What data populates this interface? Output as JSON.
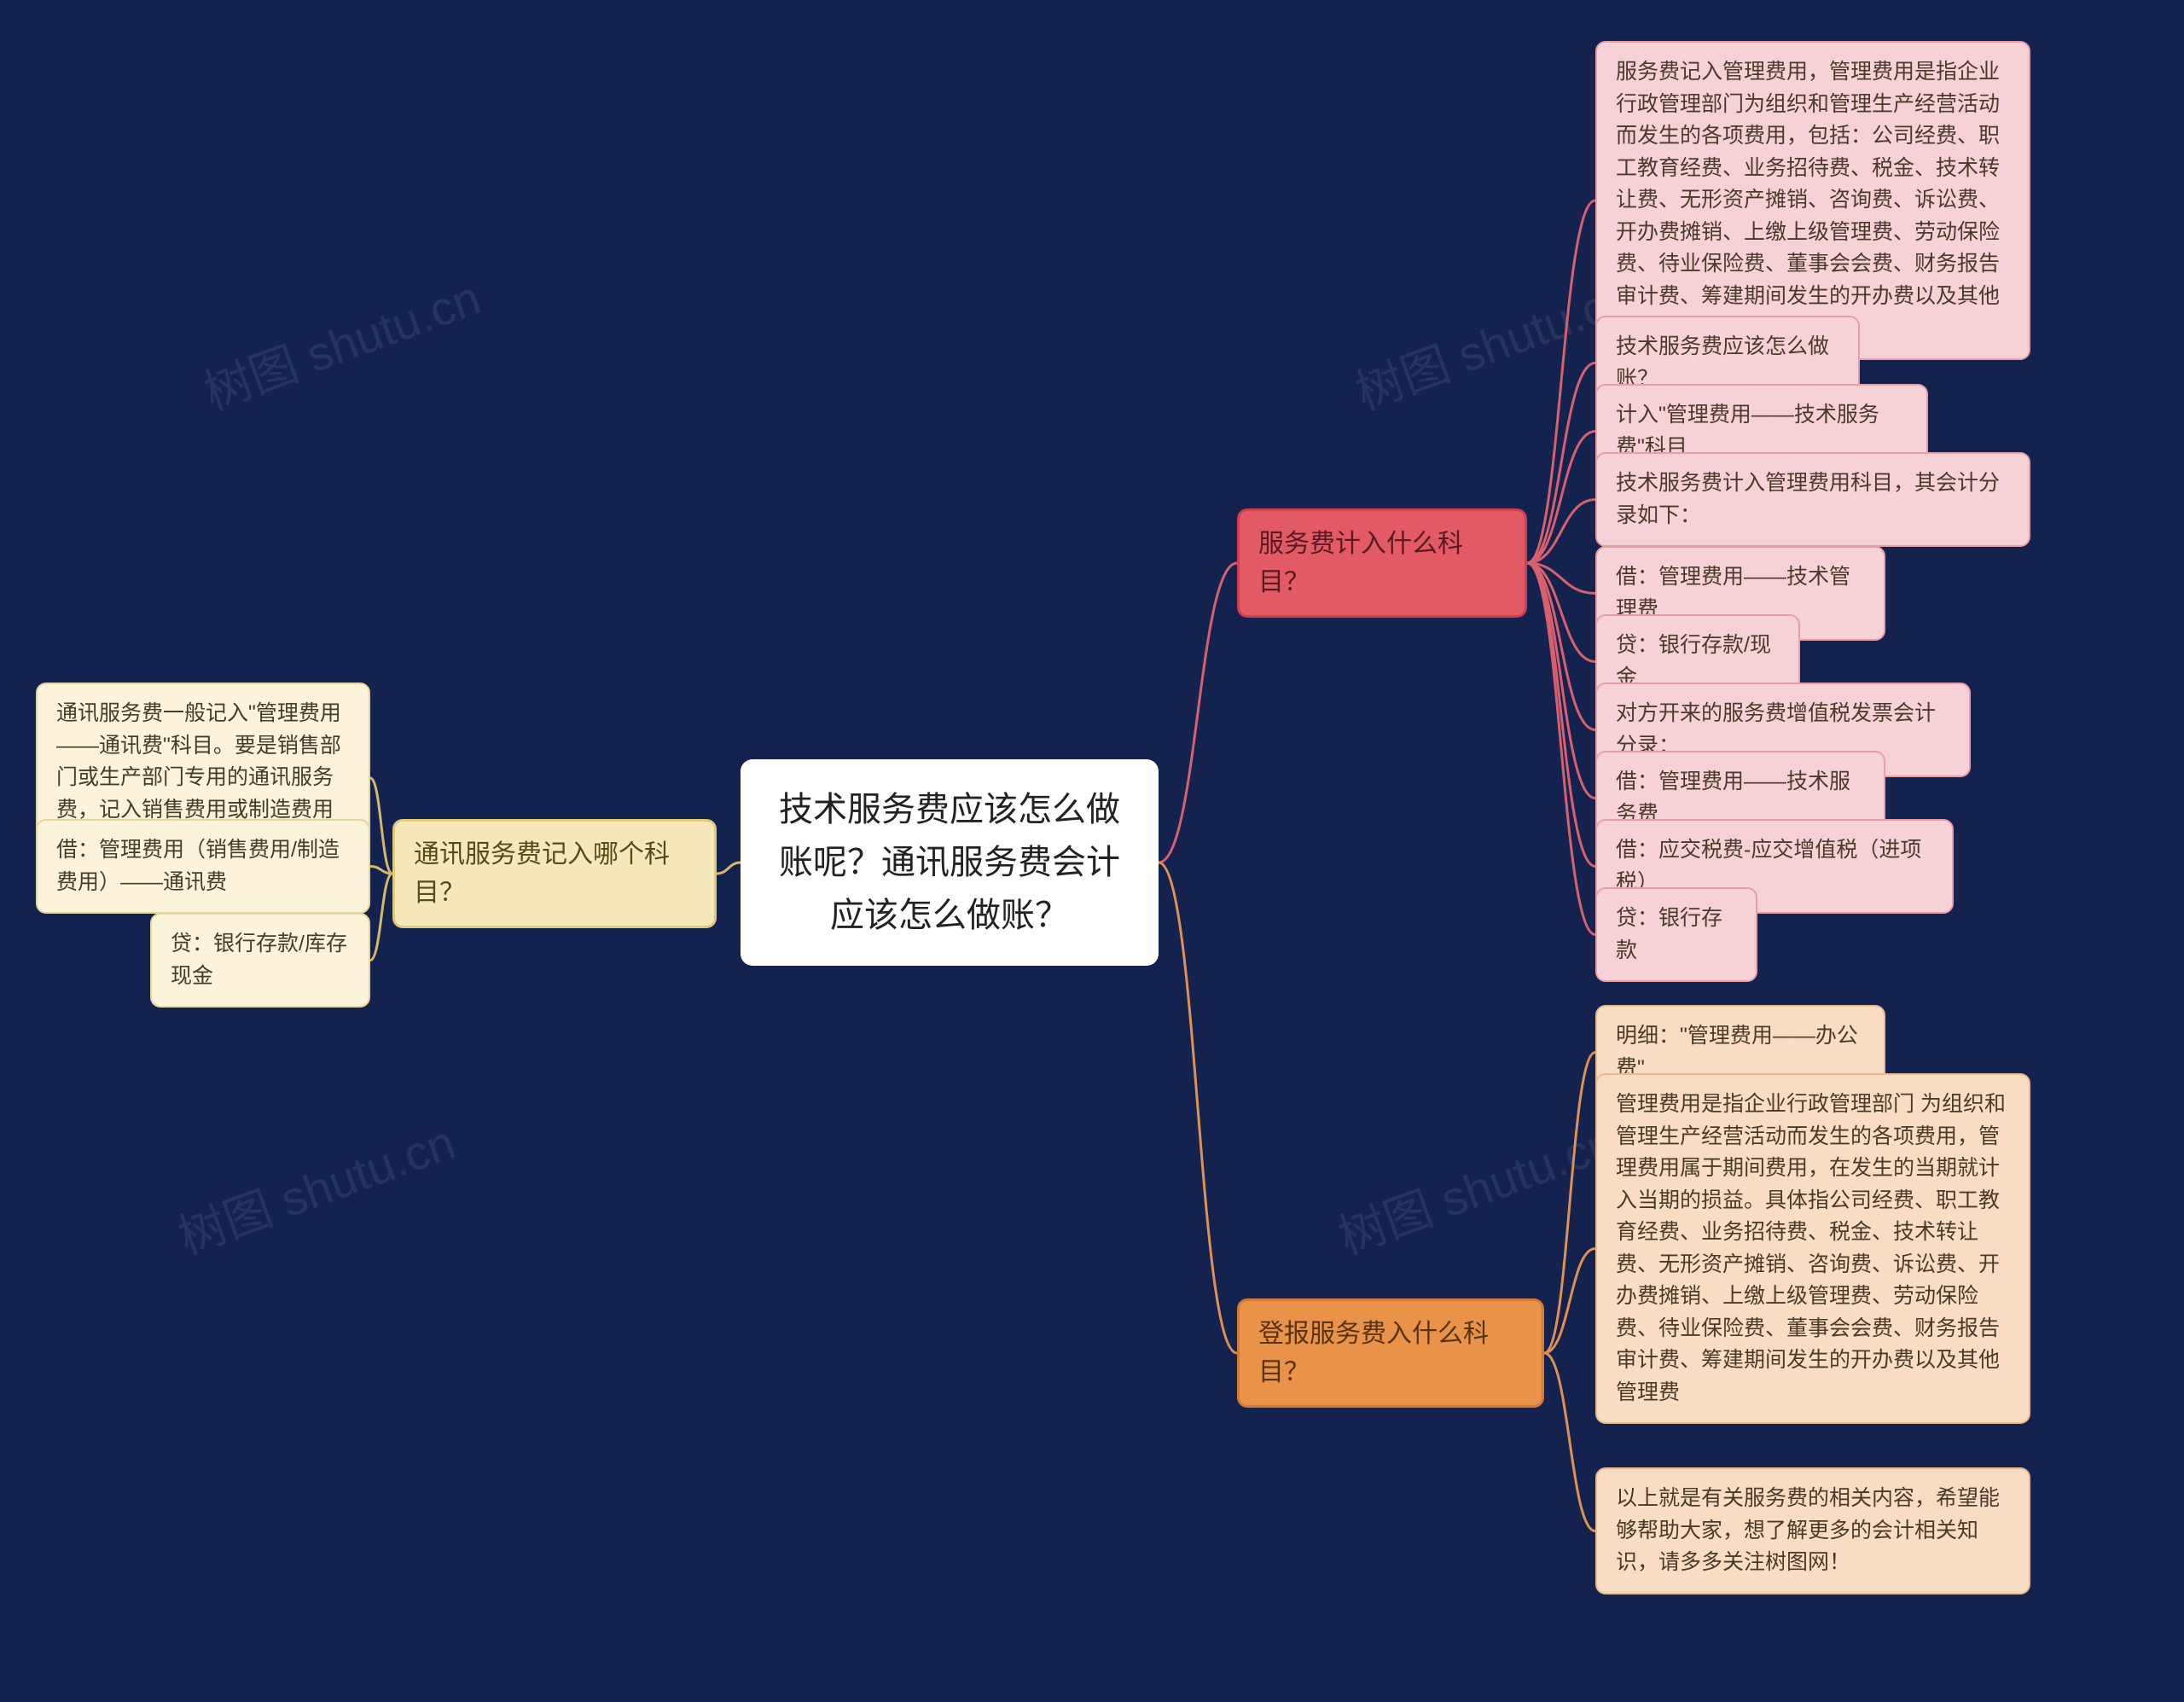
{
  "background_color": "#14224f",
  "watermark_text": "树图 shutu.cn",
  "center": {
    "text": "技术服务费应该怎么做账呢？通讯服务费会计应该怎么做账？",
    "bg": "#ffffff",
    "text_color": "#222222"
  },
  "branch_yellow": {
    "label": "通讯服务费记入哪个科目？",
    "bg": "#f6e8bb",
    "border": "#e0c978",
    "text_color": "#5a4a1a",
    "children": [
      "通讯服务费一般记入\"管理费用——通讯费\"科目。要是销售部门或生产部门专用的通讯服务费，记入销售费用或制造费用——通讯费",
      "借：管理费用（销售费用/制造费用）——通讯费",
      "贷：银行存款/库存现金"
    ],
    "leaf_bg": "#fbf4db",
    "leaf_border": "#e6d498",
    "connector": "#d4b968"
  },
  "branch_red": {
    "label": "服务费计入什么科目？",
    "bg": "#e15a66",
    "border": "#d03f4d",
    "text_color": "#5a1820",
    "children": [
      "服务费记入管理费用，管理费用是指企业行政管理部门为组织和管理生产经营活动而发生的各项费用，包括：公司经费、职工教育经费、业务招待费、税金、技术转让费、无形资产摊销、咨询费、诉讼费、开办费摊销、上缴上级管理费、劳动保险费、待业保险费、董事会会费、财务报告审计费、筹建期间发生的开办费以及其他管理费用",
      "技术服务费应该怎么做账？",
      "计入\"管理费用——技术服务费\"科目",
      "技术服务费计入管理费用科目，其会计分录如下：",
      "借：管理费用——技术管理费",
      "贷：银行存款/现金",
      "对方开来的服务费增值税发票会计分录：",
      "借：管理费用——技术服务费",
      "借：应交税费-应交增值税（进项税）",
      "贷：银行存款"
    ],
    "leaf_bg": "#f6d2d6",
    "leaf_border": "#e8a0a8",
    "connector": "#d8606c"
  },
  "branch_orange": {
    "label": "登报服务费入什么科目？",
    "bg": "#e8924a",
    "border": "#d47a32",
    "text_color": "#5a3210",
    "children": [
      "明细：\"管理费用——办公费\"",
      "管理费用是指企业行政管理部门 为组织和管理生产经营活动而发生的各项费用，管理费用属于期间费用，在发生的当期就计入当期的损益。具体指公司经费、职工教育经费、业务招待费、税金、技术转让费、无形资产摊销、咨询费、诉讼费、开办费摊销、上缴上级管理费、劳动保险费、待业保险费、董事会会费、财务报告审计费、筹建期间发生的开办费以及其他管理费",
      "以上就是有关服务费的相关内容，希望能够帮助大家，想了解更多的会计相关知识，请多多关注树图网！"
    ],
    "leaf_bg": "#f8ddc4",
    "leaf_border": "#ecba8a",
    "connector": "#e09050"
  }
}
